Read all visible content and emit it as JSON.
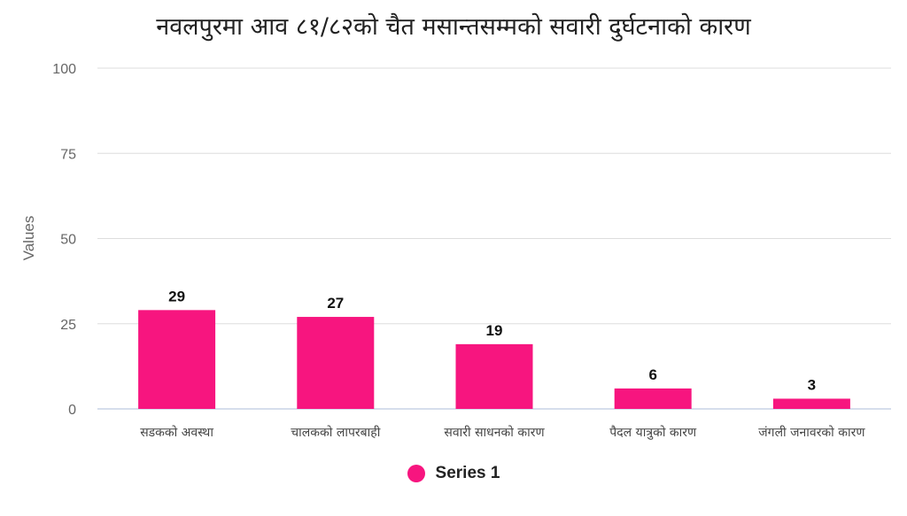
{
  "chart_data": {
    "type": "bar",
    "title": "नवलपुरमा आव ८१/८२को चैत मसान्तसम्मको सवारी दुर्घटनाको कारण",
    "xlabel": "",
    "ylabel": "Values",
    "categories": [
      "सडकको अवस्था",
      "चालकको लापरबाही",
      "सवारी साधनको कारण",
      "पैदल यात्रुको कारण",
      "जंगली जनावरको कारण"
    ],
    "series": [
      {
        "name": "Series 1",
        "values": [
          29,
          27,
          19,
          6,
          3
        ],
        "color": "#f7157f"
      }
    ],
    "ylim": [
      0,
      100
    ],
    "yticks": [
      0,
      25,
      50,
      75,
      100
    ],
    "grid": true,
    "data_labels": true,
    "legend_position": "bottom-center"
  }
}
